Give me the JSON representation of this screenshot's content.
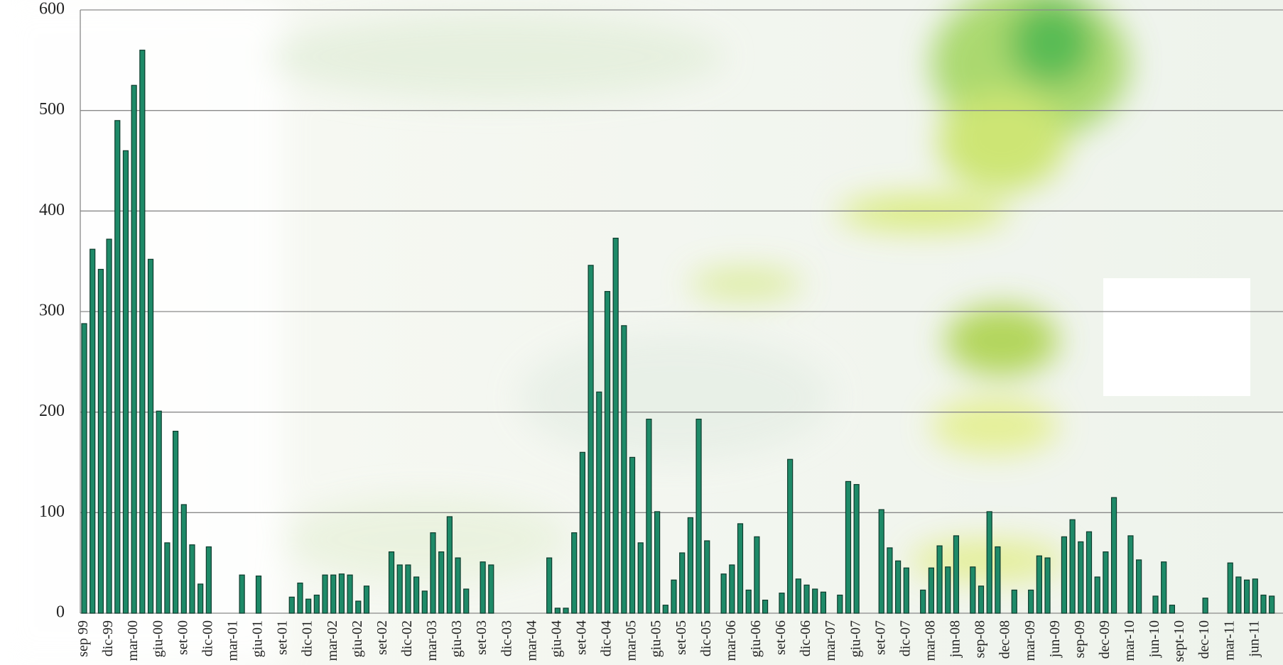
{
  "chart_data": {
    "type": "bar",
    "categories": [
      "sep 99",
      null,
      null,
      "dic-99",
      null,
      null,
      "mar-00",
      null,
      null,
      "giu-00",
      null,
      null,
      "set-00",
      null,
      null,
      "dic-00",
      null,
      null,
      "mar-01",
      null,
      null,
      "giu-01",
      null,
      null,
      "set-01",
      null,
      null,
      "dic-01",
      null,
      null,
      "mar-02",
      null,
      null,
      "giu-02",
      null,
      null,
      "set-02",
      null,
      null,
      "dic-02",
      null,
      null,
      "mar-03",
      null,
      null,
      "giu-03",
      null,
      null,
      "set-03",
      null,
      null,
      "dic-03",
      null,
      null,
      "mar-04",
      null,
      null,
      "giu-04",
      null,
      null,
      "set-04",
      null,
      null,
      "dic-04",
      null,
      null,
      "mar-05",
      null,
      null,
      "giu-05",
      null,
      null,
      "set-05",
      null,
      null,
      "dic-05",
      null,
      null,
      "mar-06",
      null,
      null,
      "giu-06",
      null,
      null,
      "set-06",
      null,
      null,
      "dic-06",
      null,
      null,
      "mar-07",
      null,
      null,
      "giu-07",
      null,
      null,
      "set-07",
      null,
      null,
      "dic-07",
      null,
      null,
      "mar-08",
      null,
      null,
      "jun-08",
      null,
      null,
      "sep-08",
      null,
      null,
      "dec-08",
      null,
      null,
      "mar-09",
      null,
      null,
      "jun-09",
      null,
      null,
      "sep-09",
      null,
      null,
      "dec-09",
      null,
      null,
      "mar-10",
      null,
      null,
      "jun-10",
      null,
      null,
      "sept-10",
      null,
      null,
      "dec-10",
      null,
      null,
      "mar-11",
      null,
      null,
      "jun-11",
      null,
      null
    ],
    "values": [
      288,
      362,
      342,
      372,
      490,
      460,
      525,
      560,
      352,
      201,
      70,
      181,
      108,
      68,
      29,
      66,
      0,
      0,
      0,
      38,
      0,
      37,
      0,
      0,
      0,
      16,
      30,
      14,
      18,
      38,
      38,
      39,
      38,
      12,
      27,
      0,
      0,
      61,
      48,
      48,
      36,
      22,
      80,
      61,
      96,
      55,
      24,
      0,
      51,
      48,
      0,
      0,
      0,
      0,
      0,
      0,
      55,
      5,
      5,
      80,
      160,
      346,
      220,
      320,
      373,
      286,
      155,
      70,
      193,
      101,
      8,
      33,
      60,
      95,
      193,
      72,
      0,
      39,
      48,
      89,
      23,
      76,
      13,
      0,
      20,
      153,
      34,
      28,
      24,
      21,
      0,
      18,
      131,
      128,
      0,
      0,
      103,
      65,
      52,
      45,
      0,
      23,
      45,
      67,
      46,
      77,
      0,
      46,
      27,
      101,
      66,
      0,
      23,
      0,
      23,
      57,
      55,
      0,
      76,
      93,
      71,
      81,
      36,
      61,
      115,
      0,
      77,
      53,
      0,
      17,
      51,
      8,
      0,
      0,
      0,
      15,
      0,
      0,
      50,
      36,
      33,
      34,
      18,
      17
    ],
    "color": "#1e8a68",
    "ylim": [
      0,
      600
    ],
    "yticks": [
      0,
      100,
      200,
      300,
      400,
      500,
      600
    ],
    "grid": true
  }
}
